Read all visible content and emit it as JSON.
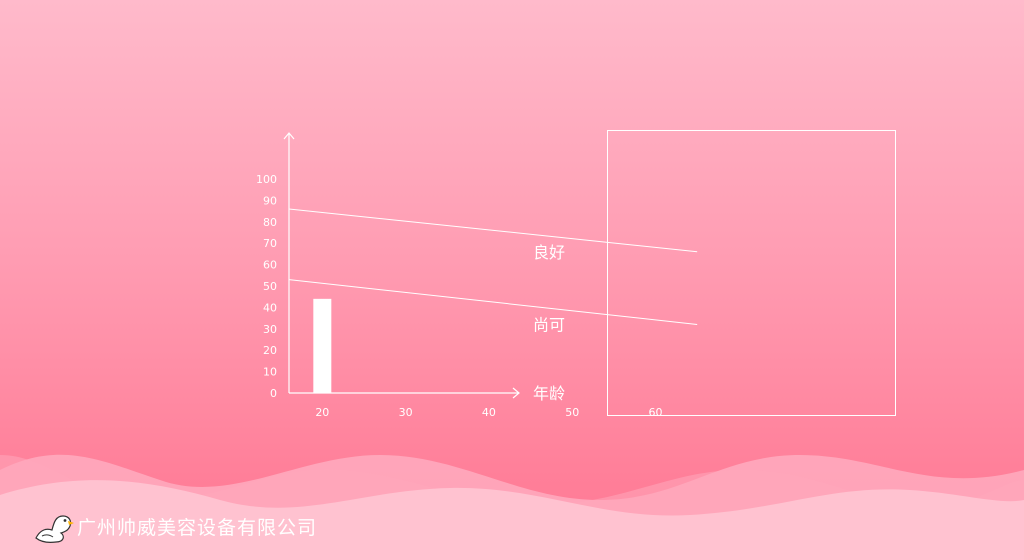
{
  "chart_data": {
    "type": "bar",
    "x_ticks": [
      20,
      30,
      40,
      50,
      60
    ],
    "y_ticks": [
      0,
      10,
      20,
      30,
      40,
      50,
      60,
      70,
      80,
      90,
      100
    ],
    "xlabel": "年龄",
    "xlim": [
      16,
      65
    ],
    "ylim": [
      0,
      112
    ],
    "bars": [
      {
        "x": 20,
        "value": 44
      }
    ],
    "reference_lines": [
      {
        "label": "良好",
        "points": [
          [
            16,
            86
          ],
          [
            65,
            66
          ]
        ]
      },
      {
        "label": "尚可",
        "points": [
          [
            16,
            53
          ],
          [
            65,
            32
          ]
        ]
      }
    ],
    "colors": {
      "axis": "#ffffff",
      "bar": "#ffffff",
      "line": "#ffffff"
    }
  },
  "footer": {
    "company_name": "广州帅威美容设备有限公司",
    "logo_icon": "duck-logo-icon"
  },
  "colors": {
    "background_top": "#ffbacb",
    "background_bottom": "#ff7893",
    "wave": "#ffc0cf"
  }
}
